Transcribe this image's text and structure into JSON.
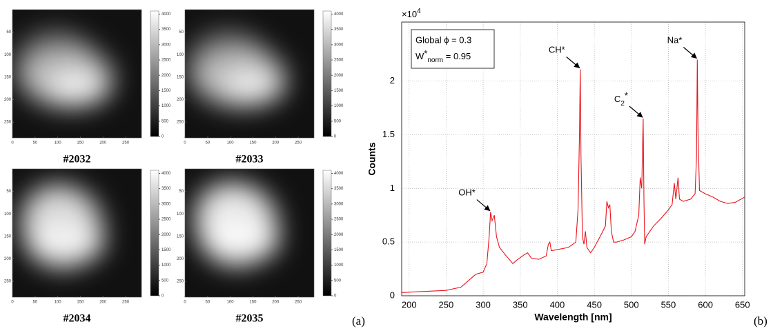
{
  "figure_a": {
    "panel_label": "(a)",
    "image_labels": [
      "#2032",
      "#2033",
      "#2034",
      "#2035"
    ],
    "xlim": [
      0,
      285
    ],
    "ylim": [
      0,
      285
    ],
    "xticks": [
      0,
      50,
      100,
      150,
      200,
      250
    ],
    "yticks": [
      50,
      100,
      150,
      200,
      250
    ],
    "clim": [
      0,
      4100
    ],
    "colorbar_ticks": [
      0,
      500,
      1000,
      1500,
      2000,
      2500,
      3000,
      3500,
      4000
    ]
  },
  "chart_data": {
    "type": "line",
    "panel_label": "(b)",
    "x_label": "Wavelength [nm]",
    "y_label": "Counts",
    "y_multiplier_base": "×10",
    "y_multiplier_exp": "4",
    "xlim": [
      190,
      653
    ],
    "ylim": [
      0,
      2.55
    ],
    "xticks": [
      200,
      250,
      300,
      350,
      400,
      450,
      500,
      550,
      600,
      650
    ],
    "yticks": [
      0,
      0.5,
      1,
      1.5,
      2
    ],
    "grid": true,
    "box": {
      "line1": "Global ϕ = 0.3",
      "w_base": "W",
      "w_sup": "*",
      "w_sub": "norm",
      "w_rest": " = 0.95"
    },
    "annotations": [
      {
        "label": "OH*",
        "x": 310,
        "y": 0.78
      },
      {
        "label": "CH*",
        "x": 431,
        "y": 2.11
      },
      {
        "label": "C",
        "sub": "2",
        "sup": "*",
        "x": 516,
        "y": 1.65
      },
      {
        "label": "Na*",
        "x": 589,
        "y": 2.2
      }
    ],
    "series": [
      {
        "color": "#e8141c",
        "x": [
          190,
          250,
          270,
          280,
          290,
          300,
          305,
          308,
          310,
          312,
          315,
          318,
          322,
          330,
          340,
          345,
          355,
          360,
          365,
          375,
          385,
          388,
          390,
          392,
          400,
          415,
          425,
          428,
          430,
          431,
          432,
          434,
          436,
          438,
          440,
          445,
          450,
          460,
          465,
          467,
          469,
          471,
          473,
          476,
          480,
          490,
          500,
          505,
          510,
          512,
          514,
          516,
          517,
          518,
          520,
          530,
          540,
          550,
          555,
          558,
          560,
          563,
          565,
          570,
          580,
          586,
          588,
          589,
          590,
          592,
          600,
          610,
          620,
          630,
          640,
          648,
          653
        ],
        "values": [
          0.03,
          0.05,
          0.08,
          0.14,
          0.2,
          0.22,
          0.3,
          0.55,
          0.78,
          0.7,
          0.75,
          0.55,
          0.45,
          0.38,
          0.3,
          0.33,
          0.38,
          0.4,
          0.35,
          0.34,
          0.37,
          0.48,
          0.5,
          0.42,
          0.43,
          0.45,
          0.5,
          0.8,
          1.5,
          2.11,
          1.3,
          0.55,
          0.48,
          0.6,
          0.45,
          0.4,
          0.45,
          0.58,
          0.65,
          0.88,
          0.82,
          0.85,
          0.6,
          0.5,
          0.5,
          0.52,
          0.55,
          0.6,
          0.75,
          1.1,
          1.0,
          1.65,
          0.9,
          0.48,
          0.55,
          0.65,
          0.72,
          0.8,
          0.85,
          1.05,
          0.9,
          1.1,
          0.9,
          0.88,
          0.9,
          0.95,
          1.3,
          2.2,
          1.5,
          0.98,
          0.95,
          0.92,
          0.88,
          0.86,
          0.87,
          0.9,
          0.92
        ]
      }
    ]
  }
}
